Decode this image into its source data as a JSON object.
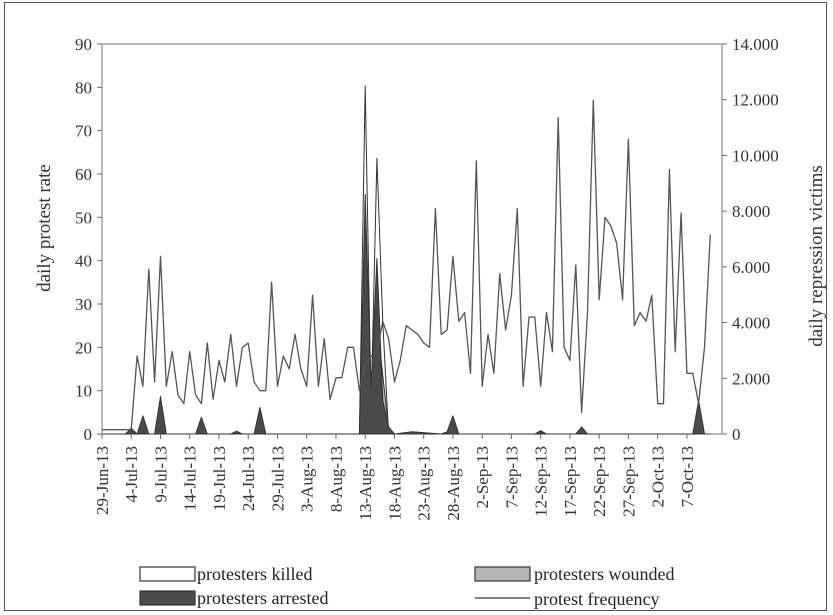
{
  "chart_data": {
    "type": "area",
    "y_left_label": "daily protest rate",
    "y_right_label": "daily repression victims",
    "y_left_lim": [
      0,
      90
    ],
    "y_left_ticks": [
      0,
      10,
      20,
      30,
      40,
      50,
      60,
      70,
      80,
      90
    ],
    "y_right_lim": [
      0,
      14000
    ],
    "y_right_ticks": [
      "0",
      "2.000",
      "4.000",
      "6.000",
      "8.000",
      "10.000",
      "12.000",
      "14.000"
    ],
    "y_right_tick_values": [
      0,
      2000,
      4000,
      6000,
      8000,
      10000,
      12000,
      14000
    ],
    "x_start": "29-Jun-13",
    "x_end": "13-Oct-13",
    "x_tick_labels": [
      "29-Jun-13",
      "4-Jul-13",
      "9-Jul-13",
      "14-Jul-13",
      "19-Jul-13",
      "24-Jul-13",
      "29-Jul-13",
      "3-Aug-13",
      "8-Aug-13",
      "13-Aug-13",
      "18-Aug-13",
      "23-Aug-13",
      "28-Aug-13",
      "2-Sep-13",
      "7-Sep-13",
      "12-Sep-13",
      "17-Sep-13",
      "22-Sep-13",
      "27-Sep-13",
      "2-Oct-13",
      "7-Oct-13"
    ],
    "legend": {
      "killed": "protesters killed",
      "wounded": "protesters wounded",
      "arrested": "protesters arrested",
      "frequency": "protest frequency"
    },
    "colors": {
      "frequency": "#555555",
      "killed_fill": "#ffffff",
      "wounded_fill": "#b5b5b5",
      "arrested_fill": "#4a4a4a",
      "outline": "#333333"
    },
    "series": [
      {
        "name": "protest frequency",
        "axis": "left",
        "values": [
          1,
          1,
          1,
          1,
          1,
          1,
          18,
          11,
          38,
          12,
          41,
          11,
          19,
          9,
          7,
          19,
          9,
          7,
          21,
          8,
          17,
          12,
          23,
          11,
          20,
          21,
          12,
          10,
          10,
          35,
          11,
          18,
          15,
          23,
          15,
          11,
          32,
          11,
          22,
          8,
          13,
          13,
          20,
          20,
          10,
          16,
          18,
          19,
          26,
          22,
          12,
          17,
          25,
          24,
          23,
          21,
          20,
          52,
          23,
          24,
          41,
          26,
          28,
          14,
          63,
          11,
          23,
          14,
          37,
          24,
          32,
          52,
          11,
          27,
          27,
          11,
          28,
          19,
          73,
          20,
          17,
          39,
          5,
          28,
          77,
          31,
          50,
          48,
          44,
          31,
          68,
          25,
          28,
          26,
          32,
          7,
          7,
          61,
          19,
          51,
          14,
          14,
          7,
          20,
          46
        ],
        "x_start": "29-Jun-13"
      },
      {
        "name": "protesters killed",
        "axis": "right",
        "x": [
          "29-Jun-13",
          "12-Aug-13",
          "13-Aug-13",
          "14-Aug-13",
          "15-Aug-13",
          "16-Aug-13",
          "17-Aug-13",
          "18-Aug-13"
        ],
        "values": [
          0,
          0,
          12500,
          900,
          9900,
          4000,
          0,
          0
        ]
      },
      {
        "name": "protesters wounded",
        "axis": "right",
        "x": [
          "29-Jun-13",
          "12-Aug-13",
          "13-Aug-13",
          "14-Aug-13",
          "15-Aug-13",
          "16-Aug-13",
          "17-Aug-13",
          "18-Aug-13"
        ],
        "values": [
          0,
          0,
          3900,
          700,
          4100,
          2100,
          200,
          0
        ]
      },
      {
        "name": "protesters arrested",
        "axis": "right",
        "x": [
          "29-Jun-13",
          "3-Jul-13",
          "4-Jul-13",
          "5-Jul-13",
          "6-Jul-13",
          "7-Jul-13",
          "8-Jul-13",
          "9-Jul-13",
          "10-Jul-13",
          "15-Jul-13",
          "16-Jul-13",
          "17-Jul-13",
          "21-Jul-13",
          "22-Jul-13",
          "23-Jul-13",
          "25-Jul-13",
          "26-Jul-13",
          "27-Jul-13",
          "11-Aug-13",
          "12-Aug-13",
          "13-Aug-13",
          "14-Aug-13",
          "15-Aug-13",
          "16-Aug-13",
          "17-Aug-13",
          "18-Aug-13",
          "21-Aug-13",
          "26-Aug-13",
          "27-Aug-13",
          "28-Aug-13",
          "29-Aug-13",
          "30-Aug-13",
          "11-Sep-13",
          "12-Sep-13",
          "13-Sep-13",
          "18-Sep-13",
          "19-Sep-13",
          "20-Sep-13",
          "8-Oct-13",
          "9-Oct-13",
          "10-Oct-13",
          "11-Oct-13"
        ],
        "values": [
          0,
          0,
          200,
          0,
          650,
          0,
          0,
          1350,
          0,
          0,
          600,
          0,
          0,
          100,
          0,
          0,
          950,
          0,
          0,
          0,
          8600,
          1700,
          6300,
          1200,
          250,
          0,
          80,
          0,
          80,
          650,
          0,
          0,
          0,
          120,
          0,
          0,
          250,
          0,
          0,
          1200,
          0,
          0
        ]
      }
    ]
  }
}
